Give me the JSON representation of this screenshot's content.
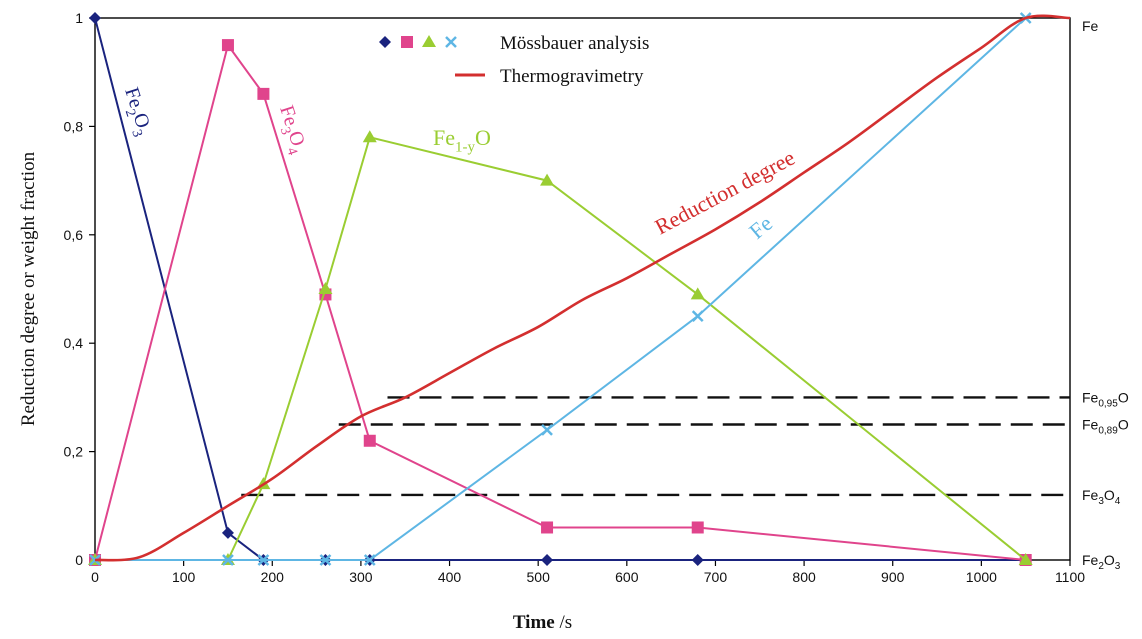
{
  "chart_data": {
    "type": "line",
    "xlabel_main": "Time",
    "xlabel_unit": " /s",
    "ylabel": "Reduction degree or weight fraction",
    "xlim": [
      0,
      1100
    ],
    "ylim": [
      0,
      1
    ],
    "x_ticks": [
      0,
      100,
      200,
      300,
      400,
      500,
      600,
      700,
      800,
      900,
      1000,
      1100
    ],
    "x_tick_labels": [
      "0",
      "100",
      "200",
      "300",
      "400",
      "500",
      "600",
      "700",
      "800",
      "900",
      "1000",
      "1100"
    ],
    "y_ticks": [
      0,
      0.2,
      0.4,
      0.6,
      0.8,
      1
    ],
    "y_tick_labels": [
      "0",
      "0,2",
      "0,4",
      "0,6",
      "0,8",
      "1"
    ],
    "grid": false,
    "legend": {
      "placement": "top-center",
      "markers_label": "Mössbauer analysis",
      "line_label": "Thermogravimetry"
    },
    "series": [
      {
        "label_main": "Fe",
        "label_sub": "2",
        "label_main2": "O",
        "label_sub2": "3",
        "color": "#1a237e",
        "marker": "diamond",
        "x": [
          0,
          150,
          190,
          260,
          310,
          510,
          680,
          1050
        ],
        "y": [
          1.0,
          0.05,
          0.0,
          0.0,
          0.0,
          0.0,
          0.0,
          0.0
        ]
      },
      {
        "label_main": "Fe",
        "label_sub": "3",
        "label_main2": "O",
        "label_sub2": "4",
        "color": "#e0448c",
        "marker": "square",
        "x": [
          0,
          150,
          190,
          260,
          310,
          510,
          680,
          1050
        ],
        "y": [
          0.0,
          0.95,
          0.86,
          0.49,
          0.22,
          0.06,
          0.06,
          0.0
        ]
      },
      {
        "label_main": "Fe",
        "label_sub": "1-y",
        "label_main2": "O",
        "label_sub2": "",
        "color": "#9acd32",
        "marker": "triangle",
        "x": [
          0,
          150,
          190,
          260,
          310,
          510,
          680,
          1050
        ],
        "y": [
          0.0,
          0.0,
          0.14,
          0.5,
          0.78,
          0.7,
          0.49,
          0.0
        ]
      },
      {
        "label_main": "Fe",
        "label_sub": "",
        "label_main2": "",
        "label_sub2": "",
        "color": "#5eb6e4",
        "marker": "cross",
        "x": [
          0,
          150,
          190,
          260,
          310,
          510,
          680,
          1050
        ],
        "y": [
          0.0,
          0.0,
          0.0,
          0.0,
          0.0,
          0.24,
          0.45,
          1.0
        ]
      },
      {
        "label": "Reduction degree",
        "color": "#d32f2f",
        "marker": "none",
        "x": [
          0,
          50,
          100,
          150,
          200,
          250,
          300,
          350,
          400,
          450,
          500,
          550,
          600,
          650,
          700,
          750,
          800,
          850,
          900,
          950,
          1000,
          1050,
          1100
        ],
        "y": [
          0.0,
          0.005,
          0.05,
          0.1,
          0.15,
          0.21,
          0.265,
          0.3,
          0.345,
          0.39,
          0.43,
          0.48,
          0.52,
          0.565,
          0.61,
          0.66,
          0.715,
          0.77,
          0.83,
          0.89,
          0.945,
          1.0,
          1.0
        ]
      }
    ],
    "reference_lines": [
      {
        "y": 0.3,
        "x_start": 330,
        "label_main": "Fe",
        "label_sub": "0,95",
        "label_end": "O"
      },
      {
        "y": 0.25,
        "x_start": 275,
        "label_main": "Fe",
        "label_sub": "0,89",
        "label_end": "O"
      },
      {
        "y": 0.12,
        "x_start": 165,
        "label_main": "Fe",
        "label_sub": "3",
        "label_end": "O",
        "label_sub2": "4"
      }
    ],
    "right_labels": [
      {
        "y": 1.0,
        "label_main": "Fe",
        "label_sub": "",
        "label_end": "",
        "label_sub2": ""
      },
      {
        "y": 0.0,
        "label_main": "Fe",
        "label_sub": "2",
        "label_end": "O",
        "label_sub2": "3"
      }
    ]
  }
}
